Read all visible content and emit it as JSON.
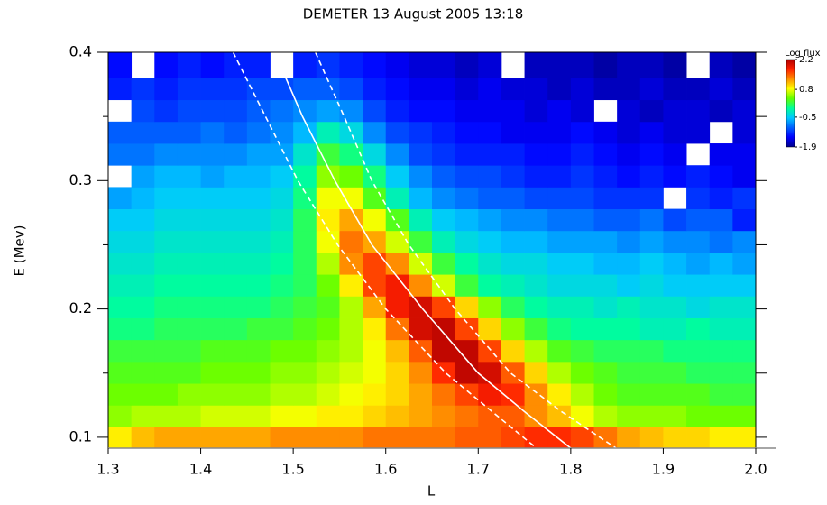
{
  "chart_data": {
    "type": "heatmap",
    "title": "DEMETER 13 August 2005 13:18",
    "xlabel": "L",
    "ylabel": "E (Mev)",
    "xbins": [
      1.3,
      1.325,
      1.35,
      1.375,
      1.4,
      1.425,
      1.45,
      1.475,
      1.5,
      1.525,
      1.55,
      1.575,
      1.6,
      1.625,
      1.65,
      1.675,
      1.7,
      1.725,
      1.75,
      1.775,
      1.8,
      1.825,
      1.85,
      1.875,
      1.9,
      1.925,
      1.95,
      1.975,
      2.0
    ],
    "ybins": [
      0.0915,
      0.108,
      0.125,
      0.142,
      0.159,
      0.176,
      0.193,
      0.21,
      0.227,
      0.244,
      0.261,
      0.278,
      0.295,
      0.312,
      0.329,
      0.346,
      0.363,
      0.38,
      0.4
    ],
    "z": [
      [
        0.9,
        1.1,
        1.2,
        1.2,
        1.2,
        1.2,
        1.2,
        1.3,
        1.3,
        1.3,
        1.3,
        1.4,
        1.4,
        1.4,
        1.4,
        1.5,
        1.5,
        1.6,
        1.7,
        1.7,
        1.6,
        1.4,
        1.2,
        1.1,
        1.0,
        1.0,
        0.9,
        0.9
      ],
      [
        0.5,
        0.6,
        0.6,
        0.6,
        0.7,
        0.7,
        0.7,
        0.8,
        0.8,
        0.9,
        0.9,
        1.0,
        1.1,
        1.2,
        1.3,
        1.4,
        1.5,
        1.5,
        1.3,
        1.1,
        0.8,
        0.6,
        0.5,
        0.5,
        0.5,
        0.4,
        0.4,
        0.4
      ],
      [
        0.4,
        0.4,
        0.4,
        0.5,
        0.5,
        0.5,
        0.5,
        0.6,
        0.6,
        0.7,
        0.8,
        0.9,
        1.0,
        1.2,
        1.4,
        1.6,
        1.8,
        1.7,
        1.3,
        0.9,
        0.6,
        0.4,
        0.3,
        0.3,
        0.3,
        0.3,
        0.2,
        0.2
      ],
      [
        0.3,
        0.3,
        0.3,
        0.3,
        0.4,
        0.4,
        0.4,
        0.5,
        0.5,
        0.6,
        0.7,
        0.8,
        1.0,
        1.3,
        1.7,
        2.1,
        2.0,
        1.5,
        1.0,
        0.6,
        0.4,
        0.3,
        0.2,
        0.2,
        0.2,
        0.1,
        0.1,
        0.1
      ],
      [
        0.2,
        0.2,
        0.2,
        0.2,
        0.3,
        0.3,
        0.3,
        0.4,
        0.4,
        0.5,
        0.6,
        0.8,
        1.1,
        1.5,
        2.1,
        2.1,
        1.6,
        1.0,
        0.6,
        0.3,
        0.2,
        0.1,
        0.1,
        0.1,
        0.0,
        0.0,
        0.0,
        0.0
      ],
      [
        0.0,
        0.0,
        0.1,
        0.1,
        0.1,
        0.1,
        0.2,
        0.2,
        0.3,
        0.4,
        0.6,
        0.9,
        1.4,
        2.0,
        2.1,
        1.6,
        1.0,
        0.5,
        0.2,
        0.0,
        -0.1,
        -0.1,
        -0.1,
        -0.2,
        -0.2,
        -0.1,
        -0.2,
        -0.2
      ],
      [
        -0.1,
        -0.1,
        0.0,
        0.0,
        0.0,
        0.0,
        0.0,
        0.1,
        0.2,
        0.3,
        0.6,
        1.2,
        1.8,
        2.0,
        1.6,
        1.0,
        0.5,
        0.1,
        -0.1,
        -0.2,
        -0.2,
        -0.3,
        -0.2,
        -0.3,
        -0.3,
        -0.4,
        -0.3,
        -0.3
      ],
      [
        -0.2,
        -0.2,
        -0.1,
        -0.1,
        -0.1,
        -0.1,
        -0.1,
        0.0,
        0.1,
        0.4,
        0.9,
        1.6,
        1.8,
        1.3,
        0.7,
        0.2,
        -0.1,
        -0.2,
        -0.3,
        -0.4,
        -0.4,
        -0.4,
        -0.5,
        -0.4,
        -0.5,
        -0.5,
        -0.5,
        -0.5
      ],
      [
        -0.3,
        -0.3,
        -0.2,
        -0.2,
        -0.2,
        -0.2,
        -0.2,
        -0.1,
        0.1,
        0.6,
        1.3,
        1.6,
        1.3,
        0.7,
        0.2,
        -0.1,
        -0.3,
        -0.4,
        -0.4,
        -0.5,
        -0.5,
        -0.6,
        -0.6,
        -0.5,
        -0.6,
        -0.7,
        -0.6,
        -0.7
      ],
      [
        -0.4,
        -0.4,
        -0.3,
        -0.3,
        -0.3,
        -0.3,
        -0.3,
        -0.2,
        0.1,
        0.8,
        1.4,
        1.2,
        0.7,
        0.2,
        -0.2,
        -0.4,
        -0.5,
        -0.6,
        -0.6,
        -0.7,
        -0.7,
        -0.7,
        -0.8,
        -0.7,
        -0.8,
        -0.8,
        -0.9,
        -0.8
      ],
      [
        -0.5,
        -0.5,
        -0.4,
        -0.4,
        -0.4,
        -0.4,
        -0.4,
        -0.3,
        0.1,
        0.9,
        1.2,
        0.8,
        0.3,
        -0.2,
        -0.5,
        -0.6,
        -0.7,
        -0.8,
        -0.8,
        -0.9,
        -0.9,
        -1.0,
        -1.0,
        -0.9,
        -1.1,
        -1.0,
        -1.0,
        -1.3
      ],
      [
        -0.7,
        -0.6,
        -0.5,
        -0.5,
        -0.5,
        -0.5,
        -0.5,
        -0.4,
        0.0,
        0.8,
        0.8,
        0.3,
        -0.2,
        -0.6,
        -0.8,
        -0.9,
        -1.0,
        -1.0,
        -1.1,
        -1.1,
        -1.1,
        -1.2,
        -1.2,
        -1.2,
        null,
        -1.2,
        -1.3,
        -1.2
      ],
      [
        null,
        -0.7,
        -0.6,
        -0.6,
        -0.7,
        -0.6,
        -0.6,
        -0.5,
        -0.1,
        0.5,
        0.4,
        0.0,
        -0.5,
        -0.8,
        -1.0,
        -1.1,
        -1.1,
        -1.2,
        -1.3,
        -1.3,
        -1.2,
        -1.3,
        -1.4,
        -1.3,
        -1.4,
        -1.3,
        -1.4,
        -1.5
      ],
      [
        -0.9,
        -0.9,
        -0.8,
        -0.8,
        -0.8,
        -0.8,
        -0.7,
        -0.7,
        -0.3,
        0.2,
        0.0,
        -0.4,
        -0.8,
        -1.1,
        -1.2,
        -1.3,
        -1.3,
        -1.3,
        -1.4,
        -1.4,
        -1.3,
        -1.4,
        -1.5,
        -1.4,
        -1.5,
        null,
        -1.5,
        -1.5
      ],
      [
        -1.0,
        -1.0,
        -1.0,
        -1.0,
        -0.9,
        -1.0,
        -0.9,
        -0.8,
        -0.6,
        -0.2,
        -0.4,
        -0.8,
        -1.1,
        -1.2,
        -1.3,
        -1.4,
        -1.4,
        -1.5,
        -1.5,
        -1.5,
        -1.4,
        -1.5,
        -1.6,
        -1.5,
        -1.6,
        -1.6,
        null,
        -1.6
      ],
      [
        null,
        -1.1,
        -1.2,
        -1.1,
        -1.1,
        -1.1,
        -1.0,
        -0.9,
        -0.8,
        -0.7,
        -0.8,
        -1.1,
        -1.3,
        -1.4,
        -1.4,
        -1.5,
        -1.5,
        -1.5,
        -1.6,
        -1.5,
        -1.6,
        null,
        -1.6,
        -1.7,
        -1.6,
        -1.6,
        -1.7,
        -1.6
      ],
      [
        -1.3,
        -1.2,
        -1.3,
        -1.2,
        -1.2,
        -1.2,
        -1.1,
        -1.1,
        -1.0,
        -1.0,
        -1.1,
        -1.3,
        -1.4,
        -1.5,
        -1.5,
        -1.6,
        -1.5,
        -1.6,
        -1.6,
        -1.7,
        -1.6,
        -1.7,
        -1.7,
        -1.6,
        -1.7,
        -1.7,
        -1.6,
        -1.7
      ],
      [
        -1.4,
        null,
        -1.4,
        -1.3,
        -1.4,
        -1.3,
        -1.3,
        null,
        -1.3,
        -1.2,
        -1.3,
        -1.4,
        -1.5,
        -1.6,
        -1.6,
        -1.7,
        -1.6,
        null,
        -1.7,
        -1.7,
        -1.7,
        -1.8,
        -1.7,
        -1.7,
        -1.8,
        null,
        -1.7,
        -1.8
      ]
    ],
    "xlim": [
      1.3,
      2.0
    ],
    "ylim": [
      0.0915,
      0.4
    ],
    "xticks": [
      1.3,
      1.4,
      1.5,
      1.6,
      1.7,
      1.8,
      1.9,
      {
        "value": 2.0,
        "label": "2.0"
      }
    ],
    "yticks": [
      0.1,
      0.2,
      0.3,
      0.4
    ],
    "yminorticks": [
      0.15,
      0.25,
      0.35
    ],
    "colormap": [
      "#00008c",
      "#0000ff",
      "#0060ff",
      "#00c8ff",
      "#00ff9a",
      "#64ff00",
      "#ffff00",
      "#ff9000",
      "#ff2000",
      "#b00000"
    ],
    "colorbar": {
      "title": "Log flux",
      "zlim": [
        -1.9,
        2.2
      ],
      "ticks": [
        2.2,
        0.8,
        -0.5,
        -1.9
      ]
    },
    "curves": [
      {
        "x": [
          1.48,
          1.51,
          1.545,
          1.585,
          1.64,
          1.7,
          1.75,
          1.8
        ],
        "y": [
          0.4,
          0.35,
          0.3,
          0.25,
          0.2,
          0.15,
          0.12,
          0.0915
        ],
        "color": "#ffffff",
        "dash": "solid"
      },
      {
        "x": [
          1.435,
          1.47,
          1.505,
          1.548,
          1.6,
          1.665,
          1.715,
          1.763
        ],
        "y": [
          0.4,
          0.35,
          0.3,
          0.25,
          0.2,
          0.15,
          0.12,
          0.0915
        ],
        "color": "#ffffff",
        "dash": "dashed"
      },
      {
        "x": [
          1.524,
          1.555,
          1.585,
          1.625,
          1.675,
          1.735,
          1.79,
          1.849
        ],
        "y": [
          0.4,
          0.35,
          0.3,
          0.25,
          0.2,
          0.15,
          0.12,
          0.0915
        ],
        "color": "#ffffff",
        "dash": "dashed"
      }
    ]
  }
}
